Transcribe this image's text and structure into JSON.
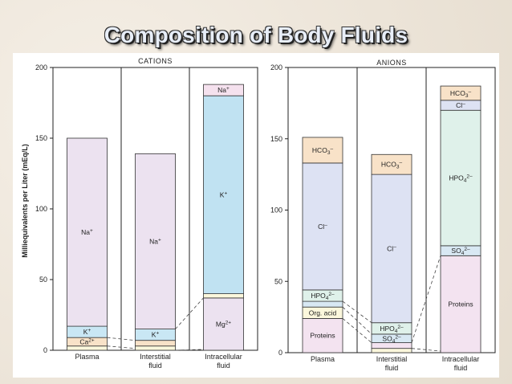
{
  "slide": {
    "title": "Composition of Body Fluids"
  },
  "chart_data": [
    {
      "type": "bar",
      "stacked": true,
      "title": "CATIONS",
      "ylabel": "Milliequivalents per Liter (mEq/L)",
      "ylim": [
        0,
        200
      ],
      "yticks": [
        "0",
        "50",
        "100",
        "150",
        "200"
      ],
      "categories": [
        "Plasma",
        "Interstitial\nfluid",
        "Intracellular\nfluid"
      ],
      "stacks": [
        [
          {
            "label": "",
            "value": 3,
            "color": "#fbf7dc"
          },
          {
            "label": "Ca2+",
            "value": 6,
            "color": "#f8e2c8"
          },
          {
            "label": "K+",
            "value": 8,
            "color": "#c9e7f4"
          },
          {
            "label": "Na+",
            "value": 133,
            "color": "#ece2f0"
          }
        ],
        [
          {
            "label": "",
            "value": 3,
            "color": "#fbf7dc"
          },
          {
            "label": "",
            "value": 4,
            "color": "#f8e2c8"
          },
          {
            "label": "K+",
            "value": 8,
            "color": "#c9e7f4"
          },
          {
            "label": "Na+",
            "value": 124,
            "color": "#ece2f0"
          }
        ],
        [
          {
            "label": "Mg2+",
            "value": 37,
            "color": "#ece2f0"
          },
          {
            "label": "",
            "value": 3,
            "color": "#fbf7dc"
          },
          {
            "label": "K+",
            "value": 140,
            "color": "#c0e2f2"
          },
          {
            "label": "Na+",
            "value": 8,
            "color": "#f5e1ee"
          }
        ]
      ]
    },
    {
      "type": "bar",
      "stacked": true,
      "title": "ANIONS",
      "ylim": [
        0,
        200
      ],
      "yticks": [
        "0",
        "50",
        "100",
        "150",
        "200"
      ],
      "categories": [
        "Plasma",
        "Interstitial\nfluid",
        "Intracellular\nfluid"
      ],
      "stacks": [
        [
          {
            "label": "Proteins",
            "value": 24,
            "color": "#f3e3f0"
          },
          {
            "label": "Org. acid",
            "value": 8,
            "color": "#fbf7dc"
          },
          {
            "label": "",
            "value": 4,
            "color": "#d8e8f3"
          },
          {
            "label": "HPO42–",
            "value": 8,
            "color": "#dff1ea"
          },
          {
            "label": "Cl–",
            "value": 89,
            "color": "#dde2f3"
          },
          {
            "label": "HCO3–",
            "value": 18,
            "color": "#f8e2c8"
          }
        ],
        [
          {
            "label": "",
            "value": 3,
            "color": "#fbf7dc"
          },
          {
            "label": "",
            "value": 4,
            "color": "#f3e3f0"
          },
          {
            "label": "SO42–",
            "value": 6,
            "color": "#d8e8f3"
          },
          {
            "label": "HPO42–",
            "value": 8,
            "color": "#dff1ea"
          },
          {
            "label": "Cl–",
            "value": 104,
            "color": "#dde2f3"
          },
          {
            "label": "HCO3–",
            "value": 14,
            "color": "#f8e2c8"
          }
        ],
        [
          {
            "label": "Proteins",
            "value": 68,
            "color": "#f3e3f0"
          },
          {
            "label": "SO42–",
            "value": 7,
            "color": "#d8e8f3"
          },
          {
            "label": "HPO42–",
            "value": 95,
            "color": "#dff1ea"
          },
          {
            "label": "Cl–",
            "value": 7,
            "color": "#dde2f3"
          },
          {
            "label": "HCO3–",
            "value": 10,
            "color": "#f8e2c8"
          }
        ]
      ]
    }
  ]
}
